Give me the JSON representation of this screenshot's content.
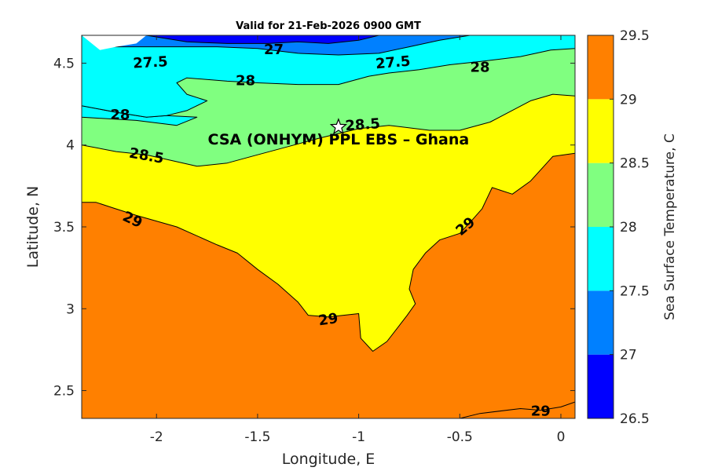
{
  "chart_data": {
    "type": "contour",
    "title": "Valid for 21-Feb-2026 0900 GMT",
    "xlabel": "Longitude, E",
    "ylabel": "Latitude, N",
    "xlim": [
      -2.37,
      0.07
    ],
    "ylim": [
      2.33,
      4.67
    ],
    "x_ticks": [
      {
        "value": -2,
        "label": "-2"
      },
      {
        "value": -1.5,
        "label": "-1.5"
      },
      {
        "value": -1,
        "label": "-1"
      },
      {
        "value": -0.5,
        "label": "-0.5"
      },
      {
        "value": 0,
        "label": "0"
      }
    ],
    "y_ticks": [
      {
        "value": 2.5,
        "label": "2.5"
      },
      {
        "value": 3,
        "label": "3"
      },
      {
        "value": 3.5,
        "label": "3.5"
      },
      {
        "value": 4,
        "label": "4"
      },
      {
        "value": 4.5,
        "label": "4.5"
      }
    ],
    "colorbar": {
      "label": "Sea Surface Temperature, C",
      "levels": [
        {
          "min": 26.5,
          "max": 27,
          "color": "#0000ff"
        },
        {
          "min": 27,
          "max": 27.5,
          "color": "#0080ff"
        },
        {
          "min": 27.5,
          "max": 28,
          "color": "#00ffff"
        },
        {
          "min": 28,
          "max": 28.5,
          "color": "#80ff80"
        },
        {
          "min": 28.5,
          "max": 29,
          "color": "#ffff00"
        },
        {
          "min": 29,
          "max": 29.5,
          "color": "#ff8000"
        }
      ],
      "tick_labels": [
        "26.5",
        "27",
        "27.5",
        "28",
        "28.5",
        "29",
        "29.5"
      ]
    },
    "regions": [
      {
        "level": "29-29.5",
        "color": "#ff8000",
        "points": [
          [
            -2.37,
            2.33
          ],
          [
            0.07,
            2.33
          ],
          [
            0.07,
            4.67
          ],
          [
            -2.37,
            4.67
          ]
        ]
      },
      {
        "level": "28.5-29",
        "color": "#ffff00",
        "points": [
          [
            -2.37,
            3.65
          ],
          [
            -2.3,
            3.65
          ],
          [
            -2.2,
            3.61
          ],
          [
            -2.1,
            3.57
          ],
          [
            -1.9,
            3.5
          ],
          [
            -1.7,
            3.39
          ],
          [
            -1.6,
            3.34
          ],
          [
            -1.5,
            3.24
          ],
          [
            -1.4,
            3.15
          ],
          [
            -1.3,
            3.04
          ],
          [
            -1.25,
            2.96
          ],
          [
            -1.15,
            2.95
          ],
          [
            -1.0,
            2.97
          ],
          [
            -0.99,
            2.82
          ],
          [
            -0.93,
            2.74
          ],
          [
            -0.86,
            2.8
          ],
          [
            -0.76,
            2.96
          ],
          [
            -0.72,
            3.03
          ],
          [
            -0.75,
            3.12
          ],
          [
            -0.73,
            3.24
          ],
          [
            -0.67,
            3.34
          ],
          [
            -0.6,
            3.42
          ],
          [
            -0.5,
            3.46
          ],
          [
            -0.44,
            3.54
          ],
          [
            -0.39,
            3.61
          ],
          [
            -0.34,
            3.74
          ],
          [
            -0.24,
            3.7
          ],
          [
            -0.15,
            3.78
          ],
          [
            -0.04,
            3.93
          ],
          [
            0.07,
            3.95
          ],
          [
            0.07,
            4.67
          ],
          [
            -2.37,
            4.67
          ]
        ]
      },
      {
        "level": "29-29.5",
        "color": "#ff8000",
        "points": [
          [
            -0.5,
            2.33
          ],
          [
            -0.4,
            2.36
          ],
          [
            -0.2,
            2.39
          ],
          [
            -0.1,
            2.38
          ],
          [
            0.0,
            2.4
          ],
          [
            0.07,
            2.43
          ],
          [
            0.07,
            2.33
          ]
        ]
      },
      {
        "level": "28-28.5",
        "color": "#80ff80",
        "points": [
          [
            -2.37,
            4.0
          ],
          [
            -2.2,
            3.96
          ],
          [
            -2.05,
            3.94
          ],
          [
            -1.8,
            3.87
          ],
          [
            -1.65,
            3.89
          ],
          [
            -1.5,
            3.94
          ],
          [
            -1.35,
            3.99
          ],
          [
            -1.2,
            4.04
          ],
          [
            -1.0,
            4.1
          ],
          [
            -0.85,
            4.12
          ],
          [
            -0.65,
            4.09
          ],
          [
            -0.5,
            4.09
          ],
          [
            -0.35,
            4.14
          ],
          [
            -0.15,
            4.27
          ],
          [
            -0.04,
            4.31
          ],
          [
            0.07,
            4.3
          ],
          [
            0.07,
            4.67
          ],
          [
            -2.37,
            4.67
          ]
        ]
      },
      {
        "level": "27.5-28",
        "color": "#00ffff",
        "points": [
          [
            -2.37,
            4.24
          ],
          [
            -2.2,
            4.2
          ],
          [
            -2.05,
            4.17
          ],
          [
            -1.95,
            4.18
          ],
          [
            -1.8,
            4.17
          ],
          [
            -1.9,
            4.12
          ],
          [
            -2.1,
            4.15
          ],
          [
            -2.37,
            4.17
          ],
          [
            -2.37,
            4.67
          ]
        ]
      },
      {
        "level": "27.5-28",
        "color": "#00ffff",
        "points": [
          [
            -2.37,
            4.24
          ],
          [
            -2.2,
            4.2
          ],
          [
            -2.05,
            4.17
          ],
          [
            -1.95,
            4.18
          ],
          [
            -1.85,
            4.21
          ],
          [
            -1.75,
            4.27
          ],
          [
            -1.85,
            4.31
          ],
          [
            -1.9,
            4.38
          ],
          [
            -1.85,
            4.41
          ],
          [
            -1.65,
            4.39
          ],
          [
            -1.5,
            4.38
          ],
          [
            -1.3,
            4.37
          ],
          [
            -1.1,
            4.37
          ],
          [
            -0.95,
            4.42
          ],
          [
            -0.85,
            4.44
          ],
          [
            -0.7,
            4.46
          ],
          [
            -0.55,
            4.49
          ],
          [
            -0.4,
            4.51
          ],
          [
            -0.2,
            4.54
          ],
          [
            -0.05,
            4.58
          ],
          [
            0.07,
            4.59
          ],
          [
            0.07,
            4.67
          ],
          [
            -2.37,
            4.67
          ]
        ]
      },
      {
        "level": "27-27.5",
        "color": "#0080ff",
        "points": [
          [
            -2.37,
            4.67
          ],
          [
            -2.25,
            4.6
          ],
          [
            -2.1,
            4.6
          ],
          [
            -1.9,
            4.6
          ],
          [
            -1.7,
            4.6
          ],
          [
            -1.5,
            4.59
          ],
          [
            -1.3,
            4.56
          ],
          [
            -1.1,
            4.55
          ],
          [
            -0.9,
            4.56
          ],
          [
            -0.75,
            4.6
          ],
          [
            -0.6,
            4.64
          ],
          [
            -0.45,
            4.67
          ]
        ]
      },
      {
        "level": "26.5-27",
        "color": "#0000ff",
        "points": [
          [
            -2.05,
            4.67
          ],
          [
            -1.85,
            4.63
          ],
          [
            -1.65,
            4.62
          ],
          [
            -1.45,
            4.62
          ],
          [
            -1.3,
            4.63
          ],
          [
            -1.15,
            4.62
          ],
          [
            -1.0,
            4.64
          ],
          [
            -0.9,
            4.67
          ]
        ]
      },
      {
        "level": "missing",
        "color": "#ffffff",
        "points": [
          [
            -2.37,
            4.67
          ],
          [
            -2.28,
            4.58
          ],
          [
            -2.2,
            4.6
          ],
          [
            -2.1,
            4.62
          ],
          [
            -2.05,
            4.67
          ]
        ]
      }
    ],
    "contour_labels": [
      {
        "text": "27.5",
        "x": -2.03,
        "y": 4.5,
        "angle": -3
      },
      {
        "text": "27",
        "x": -1.42,
        "y": 4.58,
        "angle": 0
      },
      {
        "text": "27.5",
        "x": -0.83,
        "y": 4.5,
        "angle": -5
      },
      {
        "text": "28",
        "x": -0.4,
        "y": 4.47,
        "angle": 0
      },
      {
        "text": "28",
        "x": -1.56,
        "y": 4.39,
        "angle": 0
      },
      {
        "text": "28",
        "x": -2.18,
        "y": 4.18,
        "angle": 0
      },
      {
        "text": "28.5",
        "x": -0.98,
        "y": 4.12,
        "angle": -4
      },
      {
        "text": "28.5",
        "x": -2.05,
        "y": 3.93,
        "angle": 10
      },
      {
        "text": "29",
        "x": -2.12,
        "y": 3.54,
        "angle": 25
      },
      {
        "text": "29",
        "x": -1.15,
        "y": 2.93,
        "angle": -8
      },
      {
        "text": "29",
        "x": -0.47,
        "y": 3.5,
        "angle": -40
      },
      {
        "text": "29",
        "x": -0.1,
        "y": 2.37,
        "angle": 0
      }
    ],
    "annotation": {
      "text": "CSA (ONHYM) PPL EBS  – Ghana",
      "x": -1.1,
      "y": 4.11,
      "marker": "star"
    }
  }
}
